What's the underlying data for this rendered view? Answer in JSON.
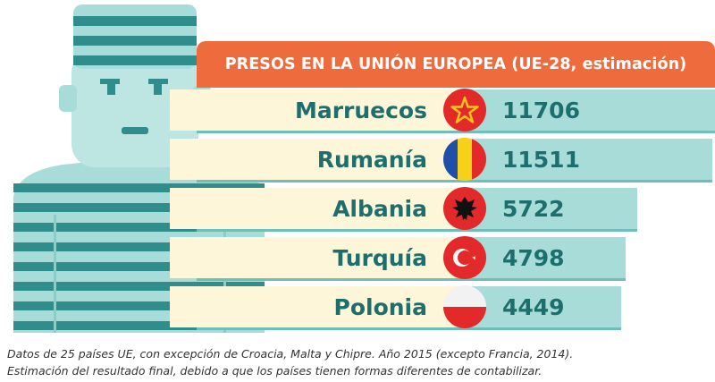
{
  "chart_data": {
    "type": "bar",
    "title": "PRESOS EN LA UNIÓN EUROPEA (UE-28, estimación)",
    "categories": [
      "Marruecos",
      "Rumanía",
      "Albania",
      "Turquía",
      "Polonia"
    ],
    "values": [
      11706,
      11511,
      5722,
      4798,
      4449
    ],
    "value_labels": [
      "11706",
      "11511",
      "5722",
      "4798",
      "4449"
    ],
    "flags": [
      "morocco-flag-icon",
      "romania-flag-icon",
      "albania-flag-icon",
      "turkey-flag-icon",
      "poland-flag-icon"
    ],
    "notes": [
      "Datos de 25 países UE, con excepción de Croacia, Malta y Chipre. Año 2015 (excepto Francia, 2014).",
      "Estimación del resultado final, debido a que los países tienen formas diferentes de contabilizar."
    ]
  },
  "colors": {
    "banner": "#ee6b3d",
    "row_light": "#fdf6d8",
    "row_teal": "#a8dcd8",
    "row_edge": "#6fbfb9",
    "text": "#1d6f6e",
    "flag_red": "#e32a2a"
  }
}
